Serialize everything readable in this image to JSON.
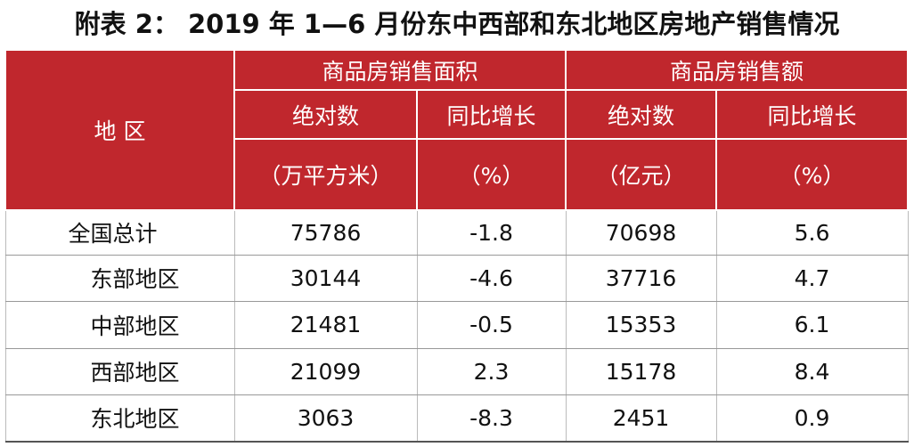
{
  "header": {
    "title": "附表 2： 2019 年 1—6 月份东中西部和东北地区房地产销售情况"
  },
  "table": {
    "region_header": "地 区",
    "groups": [
      "商品房销售面积",
      "商品房销售额"
    ],
    "subheaders": [
      {
        "label": "绝对数",
        "unit": "（万平方米）"
      },
      {
        "label": "同比增长",
        "unit": "（%）"
      },
      {
        "label": "绝对数",
        "unit": "（亿元）"
      },
      {
        "label": "同比增长",
        "unit": "（%）"
      }
    ],
    "rows": [
      [
        "全国总计",
        "75786",
        "-1.8",
        "70698",
        "5.6"
      ],
      [
        "东部地区",
        "30144",
        "-4.6",
        "37716",
        "4.7"
      ],
      [
        "中部地区",
        "21481",
        "-0.5",
        "15353",
        "6.1"
      ],
      [
        "西部地区",
        "21099",
        "2.3",
        "15178",
        "8.4"
      ],
      [
        "东北地区",
        "3063",
        "-8.3",
        "2451",
        "0.9"
      ]
    ]
  }
}
